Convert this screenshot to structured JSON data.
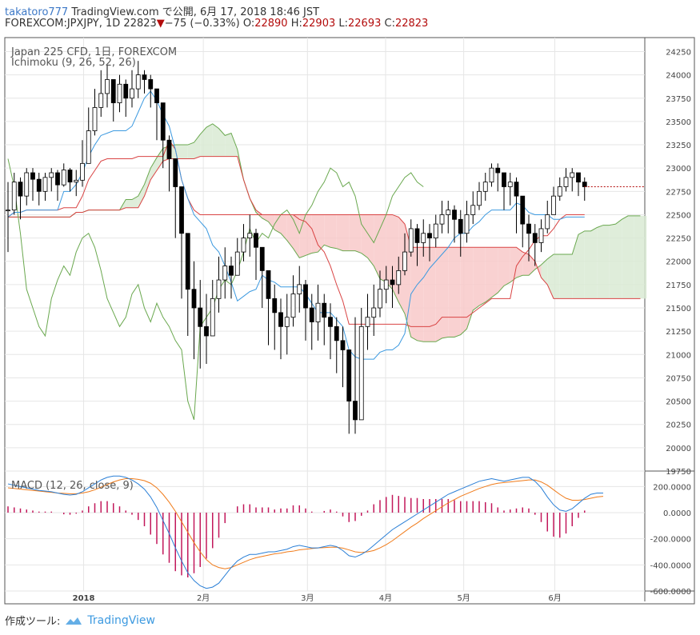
{
  "header": {
    "author": "takatoro777",
    "published": "TradingView.com で公開, 6月 17, 2018 18:46 JST",
    "symbol": "FOREXCOM:JPXJPY, 1D",
    "last": "22823",
    "change": "−75 (−0.33%)",
    "o_label": "O:",
    "o": "22890",
    "h_label": "H:",
    "h": "22903",
    "l_label": "L:",
    "l": "22693",
    "c_label": "C:",
    "c": "22823"
  },
  "legend": {
    "instrument": "Japan 225 CFD, 1日, FOREXCOM",
    "ichimoku": "Ichimoku (9, 26, 52, 26)",
    "macd": "MACD (12, 26, close, 9)"
  },
  "footer": {
    "made_with": "作成ツール:",
    "brand": "TradingView"
  },
  "colors": {
    "up": "#ffffff",
    "down": "#000000",
    "tenkan": "#3d9ae0",
    "kijun": "#d94444",
    "chikou": "#6aa84f",
    "bull_cloud": "#d9ead3",
    "bear_cloud": "#f8c9c9",
    "macd": "#2a7fd6",
    "signal": "#f07b1a",
    "hist": "#c2185b",
    "grid": "#e6e6e6"
  },
  "chart_data": [
    {
      "type": "candlestick",
      "title": "Japan 225 CFD, 1日, FOREXCOM",
      "indicator": "Ichimoku (9, 26, 52, 26)",
      "ylim": [
        19750,
        24400
      ],
      "yticks": [
        24250,
        24000,
        23750,
        23500,
        23250,
        23000,
        22750,
        22500,
        22250,
        22000,
        21750,
        21500,
        21250,
        21000,
        20750,
        20500,
        20250,
        20000,
        19750
      ],
      "xticks": [
        "2018",
        "2月",
        "3月",
        "4月",
        "5月",
        "6月"
      ],
      "close": [
        22550,
        22850,
        22700,
        22950,
        22880,
        22750,
        22900,
        22950,
        22820,
        22980,
        22850,
        22870,
        23050,
        23400,
        23650,
        23800,
        23950,
        23700,
        23900,
        23750,
        23850,
        24000,
        23950,
        23850,
        23700,
        23300,
        23100,
        22800,
        22300,
        21700,
        21500,
        21300,
        21200,
        21600,
        21800,
        21950,
        21850,
        22100,
        22250,
        22300,
        22150,
        21900,
        21600,
        21450,
        21300,
        21400,
        21650,
        21750,
        21500,
        21350,
        21550,
        21400,
        21300,
        21150,
        21050,
        20500,
        20300,
        21300,
        21400,
        21500,
        21700,
        21800,
        21750,
        21900,
        22100,
        22350,
        22200,
        22300,
        22250,
        22400,
        22500,
        22550,
        22450,
        22300,
        22500,
        22600,
        22750,
        22850,
        23000,
        22950,
        22800,
        22850,
        22700,
        22400,
        22300,
        22200,
        22350,
        22500,
        22700,
        22800,
        22900,
        22950,
        22850,
        22800
      ],
      "high": [
        22850,
        22950,
        22900,
        23000,
        23000,
        22950,
        22950,
        23000,
        22980,
        23050,
        23000,
        22980,
        23300,
        23650,
        23850,
        24050,
        24100,
        23950,
        24000,
        23950,
        24050,
        24150,
        24050,
        24000,
        23850,
        23500,
        23350,
        23050,
        22700,
        22300,
        22000,
        21800,
        21650,
        21800,
        22050,
        22150,
        22050,
        22250,
        22400,
        22500,
        22350,
        22150,
        21900,
        21750,
        21600,
        21650,
        21850,
        21950,
        21800,
        21650,
        21750,
        21650,
        21550,
        21400,
        21300,
        20900,
        21400,
        21500,
        21650,
        21750,
        21900,
        21950,
        21950,
        22050,
        22300,
        22450,
        22400,
        22450,
        22400,
        22500,
        22650,
        22650,
        22600,
        22550,
        22650,
        22750,
        22850,
        22950,
        23050,
        23050,
        22950,
        22950,
        22900,
        22700,
        22500,
        22400,
        22450,
        22650,
        22800,
        22900,
        23000,
        23000,
        22950,
        22900
      ],
      "low": [
        22100,
        22500,
        22450,
        22600,
        22650,
        22600,
        22650,
        22750,
        22650,
        22800,
        22750,
        22700,
        22800,
        23050,
        23350,
        23550,
        23650,
        23500,
        23600,
        23550,
        23650,
        23750,
        23800,
        23650,
        23300,
        23000,
        22750,
        22250,
        21600,
        21200,
        20950,
        20850,
        20900,
        21200,
        21450,
        21600,
        21600,
        21850,
        22000,
        22050,
        21800,
        21500,
        21100,
        21050,
        20950,
        21000,
        21300,
        21450,
        21150,
        21050,
        21150,
        21100,
        20950,
        20800,
        20650,
        20150,
        20150,
        20850,
        21050,
        21200,
        21400,
        21550,
        21500,
        21650,
        21850,
        22050,
        21950,
        22050,
        22000,
        22150,
        22300,
        22300,
        22200,
        22050,
        22200,
        22400,
        22550,
        22650,
        22800,
        22750,
        22550,
        22600,
        22300,
        22150,
        22000,
        21950,
        22100,
        22300,
        22500,
        22650,
        22750,
        22750,
        22700,
        22650
      ]
    },
    {
      "type": "line",
      "title": "MACD (12, 26, close, 9)",
      "ylim": [
        -600,
        300
      ],
      "yticks": [
        200,
        0,
        -200,
        -400,
        -600
      ],
      "ytick_labels": [
        "200.0000",
        "0.0000",
        "-200.0000",
        "-400.0000",
        "-600.0000"
      ],
      "series": [
        {
          "values": [
            220,
            210,
            200,
            190,
            180,
            170,
            165,
            160,
            150,
            140,
            135,
            140,
            160,
            190,
            220,
            250,
            270,
            280,
            280,
            270,
            250,
            220,
            180,
            120,
            40,
            -60,
            -160,
            -270,
            -370,
            -460,
            -520,
            -560,
            -580,
            -570,
            -540,
            -480,
            -420,
            -370,
            -340,
            -320,
            -320,
            -310,
            -300,
            -300,
            -290,
            -280,
            -260,
            -250,
            -260,
            -270,
            -270,
            -260,
            -250,
            -260,
            -290,
            -330,
            -340,
            -320,
            -290,
            -250,
            -210,
            -170,
            -130,
            -100,
            -70,
            -40,
            -10,
            20,
            50,
            80,
            110,
            140,
            160,
            180,
            200,
            220,
            240,
            250,
            260,
            250,
            240,
            250,
            260,
            270,
            270,
            240,
            190,
            120,
            60,
            20,
            10,
            30,
            70,
            110,
            140,
            150,
            150
          ]
        },
        {
          "values": [
            190,
            185,
            180,
            175,
            170,
            165,
            160,
            155,
            150,
            148,
            145,
            145,
            150,
            160,
            175,
            195,
            215,
            235,
            250,
            260,
            260,
            255,
            245,
            225,
            190,
            140,
            80,
            10,
            -70,
            -150,
            -230,
            -300,
            -360,
            -400,
            -420,
            -430,
            -420,
            -400,
            -380,
            -360,
            -345,
            -335,
            -325,
            -315,
            -310,
            -300,
            -295,
            -285,
            -280,
            -275,
            -270,
            -268,
            -265,
            -265,
            -272,
            -285,
            -300,
            -305,
            -300,
            -290,
            -270,
            -245,
            -215,
            -180,
            -145,
            -110,
            -80,
            -45,
            -15,
            15,
            45,
            75,
            100,
            125,
            145,
            165,
            185,
            200,
            215,
            225,
            230,
            235,
            240,
            245,
            250,
            250,
            235,
            210,
            175,
            140,
            110,
            95,
            95,
            100,
            110,
            120,
            125
          ]
        }
      ]
    }
  ]
}
